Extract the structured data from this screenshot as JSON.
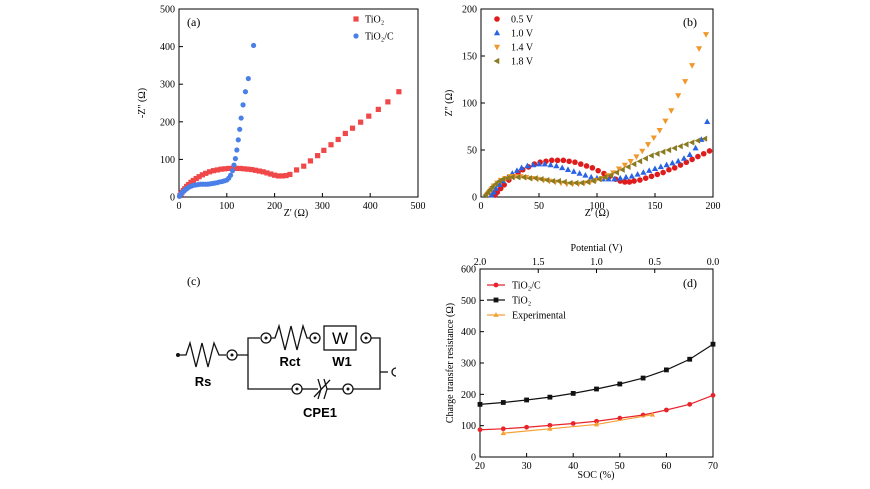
{
  "chart_data": [
    {
      "type": "scatter",
      "panel_label": "(a)",
      "xlabel": "Z' (Ω)",
      "ylabel": "-Z\" (Ω)",
      "xlim": [
        0,
        500
      ],
      "ylim": [
        0,
        500
      ],
      "xticks": [
        "0",
        "100",
        "200",
        "300",
        "400",
        "500"
      ],
      "yticks": [
        "0",
        "100",
        "200",
        "300",
        "400",
        "500"
      ],
      "legend_position": "top-right",
      "series": [
        {
          "name": "TiO₂",
          "marker": "square",
          "color": "#f04848",
          "x": [
            2,
            4,
            6,
            9,
            12,
            16,
            20,
            25,
            30,
            36,
            42,
            49,
            56,
            64,
            72,
            80,
            88,
            96,
            104,
            112,
            120,
            128,
            136,
            144,
            152,
            160,
            168,
            176,
            184,
            192,
            200,
            208,
            216,
            224,
            232,
            246,
            261,
            275,
            290,
            303,
            318,
            333,
            348,
            363,
            380,
            397,
            417,
            437,
            460
          ],
          "y": [
            4,
            8,
            12,
            17,
            22,
            28,
            33,
            39,
            44,
            49,
            54,
            59,
            63,
            67,
            70,
            72,
            74,
            75,
            76,
            76,
            76,
            76,
            75,
            74,
            73,
            71,
            69,
            67,
            64,
            61,
            58,
            56,
            56,
            57,
            60,
            72,
            82,
            96,
            110,
            124,
            139,
            153,
            169,
            183,
            199,
            215,
            233,
            253,
            280
          ]
        },
        {
          "name": "TiO₂/C",
          "marker": "circle",
          "color": "#4a7fe8",
          "x": [
            1,
            2,
            3,
            5,
            7,
            9,
            12,
            15,
            18,
            22,
            26,
            30,
            35,
            40,
            45,
            50,
            55,
            60,
            65,
            70,
            75,
            80,
            85,
            90,
            95,
            100,
            104,
            108,
            112,
            115,
            118,
            121,
            124,
            127,
            130,
            134,
            139,
            145,
            156
          ],
          "y": [
            2,
            4,
            6,
            9,
            12,
            15,
            18,
            21,
            24,
            27,
            29,
            31,
            32,
            33,
            34,
            34,
            34,
            34,
            35,
            36,
            37,
            38,
            40,
            41,
            43,
            45,
            50,
            58,
            70,
            85,
            102,
            125,
            152,
            180,
            210,
            245,
            280,
            315,
            403
          ]
        }
      ]
    },
    {
      "type": "scatter",
      "panel_label": "(b)",
      "xlabel": "Z' (Ω)",
      "ylabel": "Z\" (Ω)",
      "xlim": [
        0,
        200
      ],
      "ylim": [
        0,
        200
      ],
      "xticks": [
        "0",
        "50",
        "100",
        "150",
        "200"
      ],
      "yticks": [
        "0",
        "50",
        "100",
        "150",
        "200"
      ],
      "legend_position": "top-left",
      "series": [
        {
          "name": "0.5 V",
          "marker": "circle",
          "color": "#e01b1b",
          "x": [
            12,
            14,
            17,
            20,
            24,
            28,
            32,
            36,
            41,
            46,
            51,
            56,
            61,
            66,
            71,
            76,
            81,
            86,
            91,
            96,
            101,
            106,
            111,
            116,
            120,
            124,
            128,
            132,
            137,
            142,
            147,
            152,
            157,
            162,
            167,
            172,
            177,
            182,
            187,
            192,
            197
          ],
          "y": [
            2,
            5,
            9,
            13,
            18,
            22,
            26,
            29,
            32,
            35,
            37,
            38,
            39,
            39,
            39,
            38,
            37,
            35,
            33,
            31,
            28,
            25,
            22,
            19,
            17,
            16,
            16,
            17,
            18,
            20,
            22,
            24,
            26,
            29,
            31,
            34,
            37,
            40,
            43,
            46,
            49
          ]
        },
        {
          "name": "1.0 V",
          "marker": "triangle-up",
          "color": "#2a62e6",
          "x": [
            9,
            11,
            13,
            16,
            19,
            23,
            27,
            31,
            35,
            40,
            45,
            50,
            55,
            60,
            65,
            70,
            75,
            80,
            85,
            90,
            95,
            100,
            105,
            110,
            115,
            120,
            125,
            130,
            135,
            140,
            145,
            150,
            155,
            160,
            165,
            170,
            175,
            180,
            185,
            190,
            195
          ],
          "y": [
            2,
            5,
            9,
            13,
            17,
            21,
            25,
            28,
            31,
            33,
            34,
            35,
            35,
            34,
            33,
            31,
            29,
            27,
            25,
            23,
            21,
            20,
            19,
            19,
            19,
            20,
            21,
            22,
            24,
            26,
            28,
            30,
            32,
            34,
            36,
            38,
            41,
            45,
            52,
            61,
            80
          ]
        },
        {
          "name": "1.4 V",
          "marker": "triangle-down",
          "color": "#f0982b",
          "x": [
            5,
            7,
            9,
            11,
            14,
            17,
            21,
            25,
            29,
            34,
            39,
            44,
            49,
            54,
            59,
            64,
            69,
            74,
            79,
            84,
            89,
            94,
            99,
            104,
            109,
            114,
            119,
            124,
            129,
            134,
            139,
            144,
            149,
            154,
            159,
            164,
            170,
            176,
            182,
            188,
            194
          ],
          "y": [
            2,
            5,
            8,
            12,
            15,
            18,
            20,
            22,
            22,
            22,
            21,
            20,
            19,
            18,
            17,
            16,
            15,
            14,
            14,
            14,
            15,
            16,
            18,
            20,
            23,
            26,
            30,
            34,
            38,
            43,
            49,
            56,
            63,
            71,
            81,
            92,
            108,
            123,
            140,
            158,
            173
          ]
        },
        {
          "name": "1.8 V",
          "marker": "triangle-left",
          "color": "#8a7a22",
          "x": [
            4,
            6,
            8,
            10,
            13,
            16,
            19,
            23,
            27,
            32,
            37,
            42,
            47,
            52,
            57,
            62,
            67,
            72,
            77,
            82,
            87,
            92,
            97,
            102,
            107,
            112,
            117,
            122,
            127,
            132,
            137,
            142,
            147,
            152,
            157,
            162,
            167,
            172,
            177,
            182,
            187,
            193
          ],
          "y": [
            2,
            5,
            8,
            11,
            14,
            17,
            19,
            20,
            21,
            21,
            21,
            20,
            20,
            19,
            18,
            17,
            17,
            16,
            15,
            15,
            15,
            16,
            17,
            19,
            21,
            23,
            26,
            29,
            32,
            35,
            38,
            41,
            44,
            46,
            48,
            50,
            52,
            54,
            56,
            58,
            60,
            62
          ]
        }
      ]
    },
    {
      "type": "line",
      "panel_label": "(d)",
      "xlabel": "SOC (%)",
      "ylabel": "Charge transfer resistance (Ω)",
      "top_xlabel": "Potential (V)",
      "xlim": [
        20,
        70
      ],
      "ylim": [
        0,
        600
      ],
      "xticks": [
        "20",
        "30",
        "40",
        "50",
        "60",
        "70"
      ],
      "yticks": [
        "0",
        "100",
        "200",
        "300",
        "400",
        "500",
        "600"
      ],
      "top_xticks": [
        "2.0",
        "1.5",
        "1.0",
        "0.5",
        "0.0"
      ],
      "legend_position": "top-left",
      "series": [
        {
          "name": "TiO₂/C",
          "marker": "circle",
          "color": "#e8232a",
          "x": [
            20,
            25,
            30,
            35,
            40,
            45,
            50,
            55,
            60,
            65,
            70
          ],
          "y": [
            87,
            90,
            95,
            101,
            107,
            114,
            124,
            134,
            150,
            168,
            197
          ]
        },
        {
          "name": "TiO₂",
          "marker": "square",
          "color": "#111111",
          "x": [
            20,
            25,
            30,
            35,
            40,
            45,
            50,
            55,
            60,
            65,
            70
          ],
          "y": [
            168,
            174,
            182,
            191,
            203,
            217,
            233,
            252,
            278,
            312,
            360
          ]
        },
        {
          "name": "Experimental",
          "marker": "triangle-up",
          "color": "#f5a035",
          "x": [
            25,
            35,
            45,
            57
          ],
          "y": [
            76,
            90,
            104,
            135
          ]
        }
      ]
    }
  ],
  "circuit": {
    "panel_label": "(c)",
    "labels": [
      "Rs",
      "Rct",
      "W1",
      "CPE1"
    ],
    "warburg_box_text": "W"
  }
}
